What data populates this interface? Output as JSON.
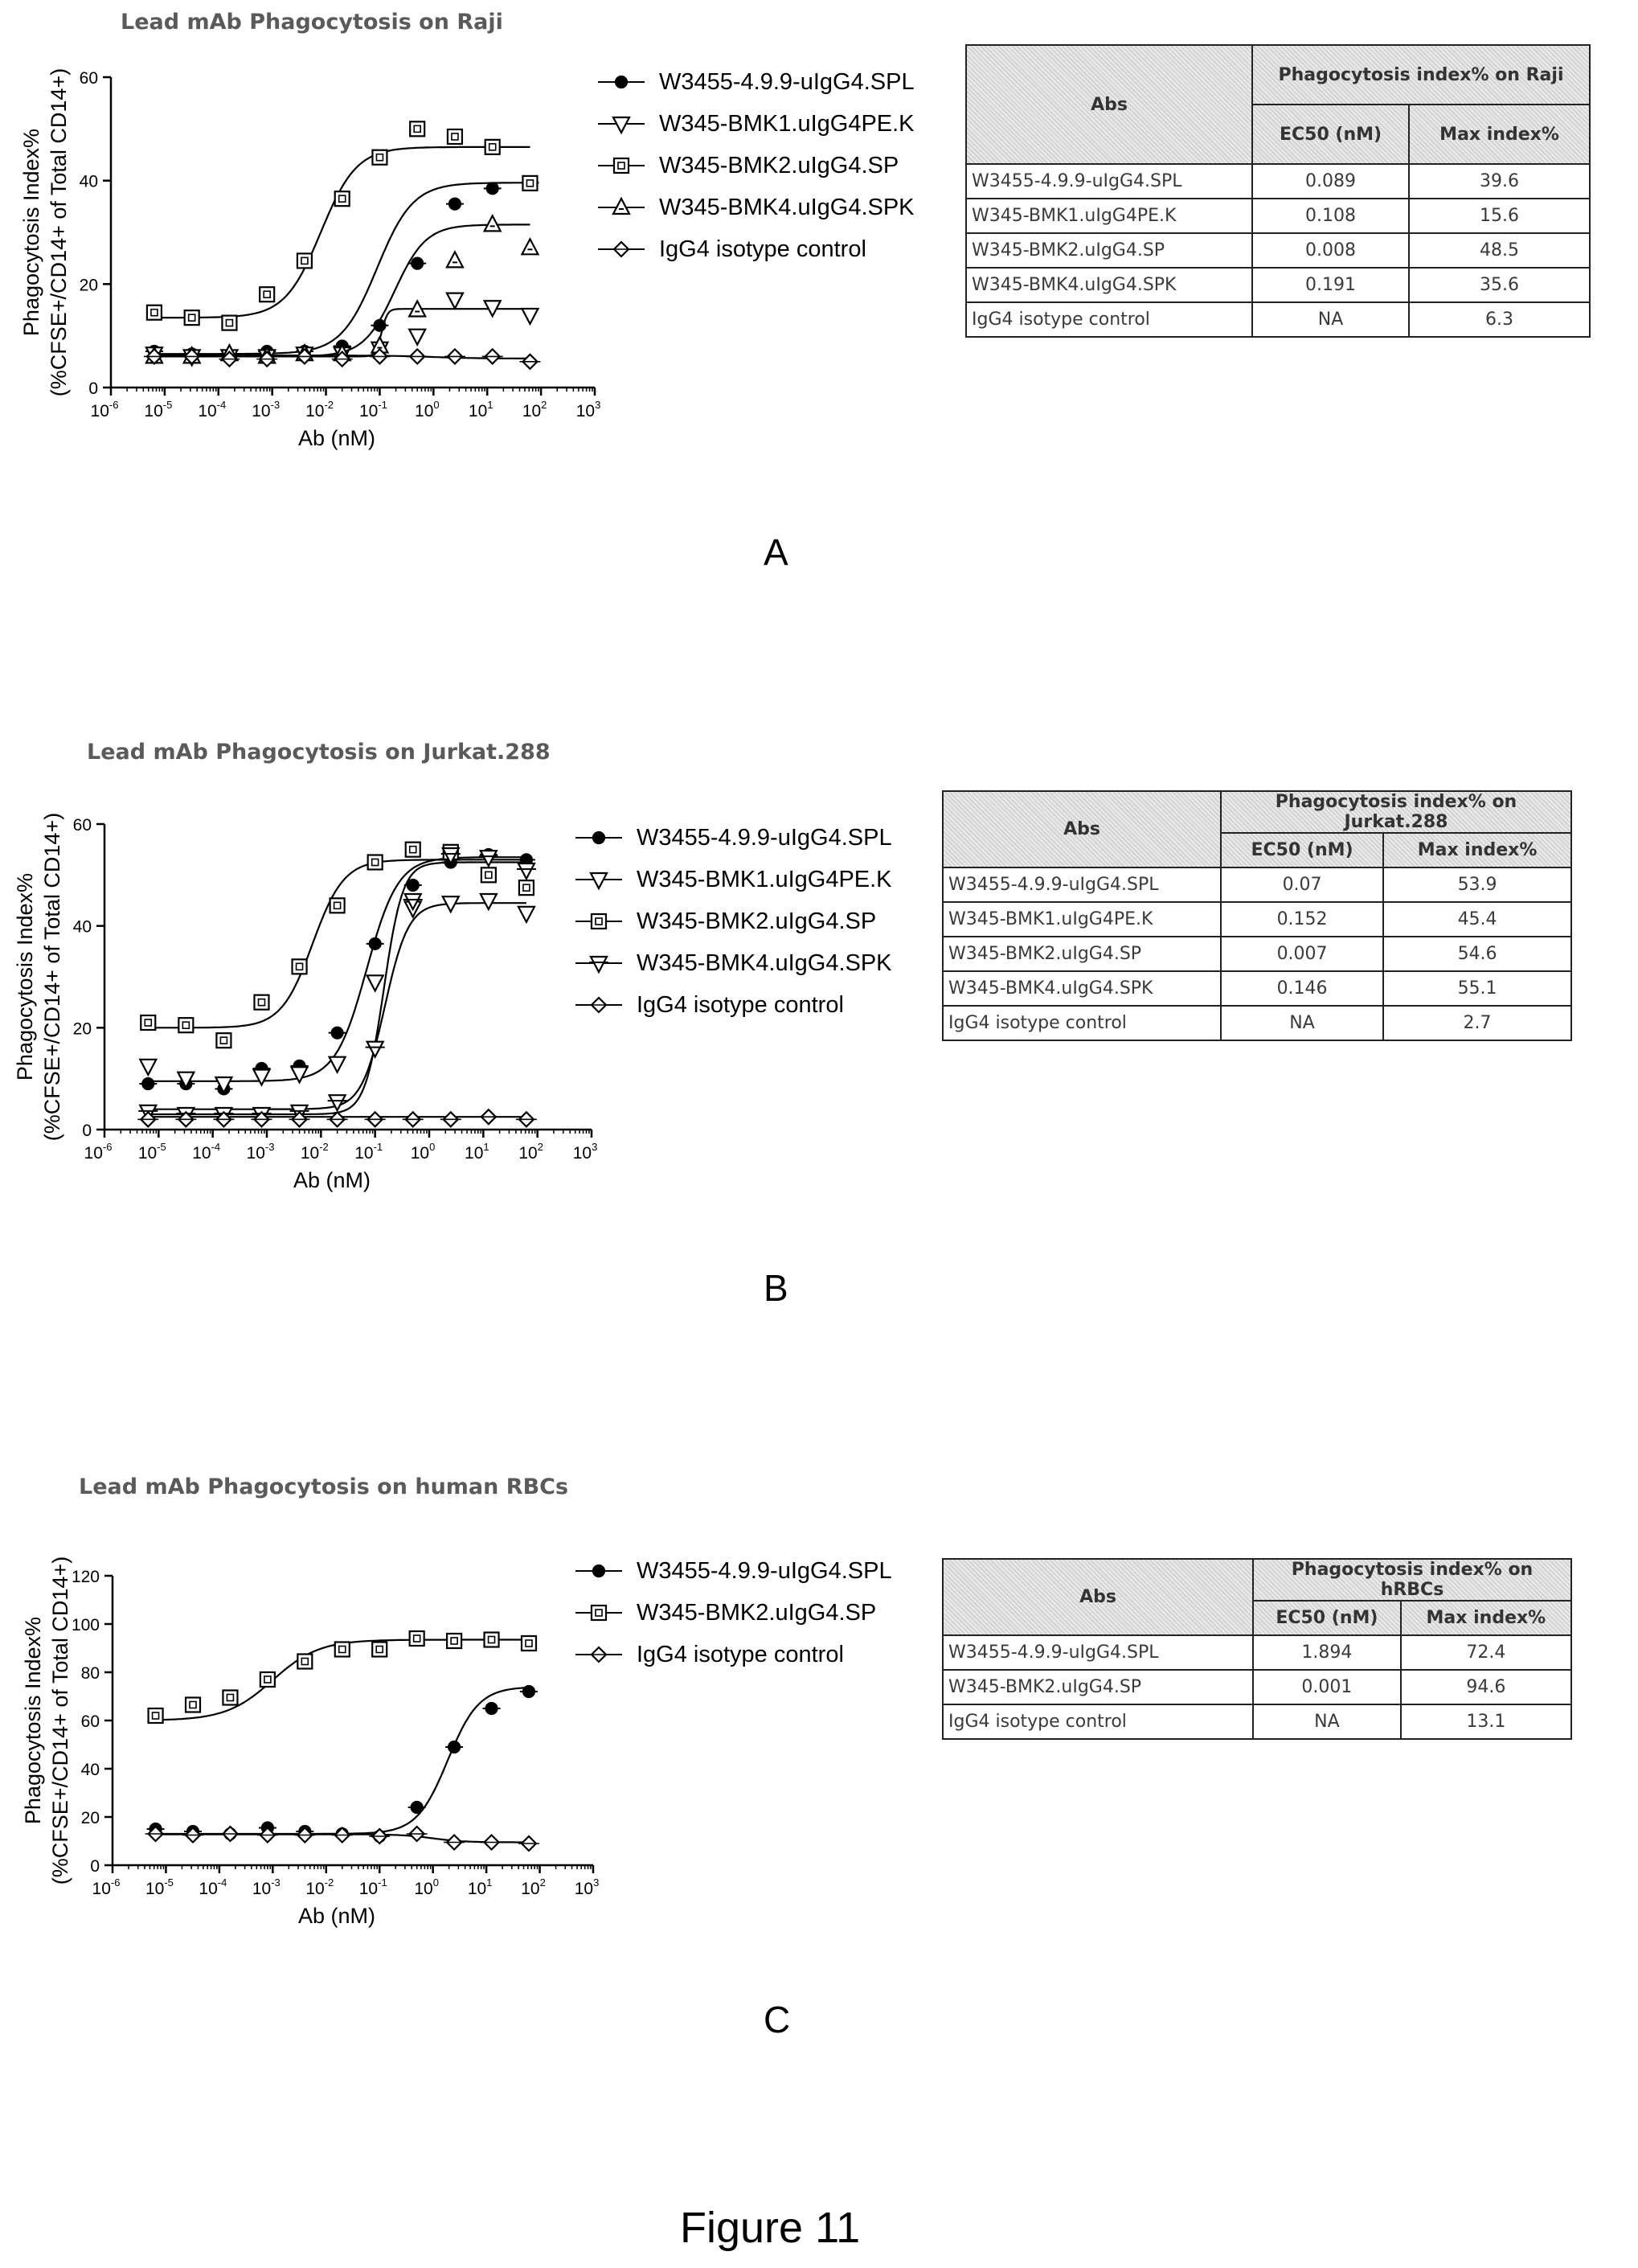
{
  "figure_label": "Figure 11",
  "panels": [
    {
      "label": "A",
      "table": {
        "abs_header": "Abs",
        "group_header": "Phagocytosis index% on Raji",
        "col1": "EC50 (nM)",
        "col2": "Max index%",
        "rows": [
          [
            "W3455-4.9.9-uIgG4.SPL",
            "0.089",
            "39.6"
          ],
          [
            "W345-BMK1.uIgG4PE.K",
            "0.108",
            "15.6"
          ],
          [
            "W345-BMK2.uIgG4.SP",
            "0.008",
            "48.5"
          ],
          [
            "W345-BMK4.uIgG4.SPK",
            "0.191",
            "35.6"
          ],
          [
            "IgG4 isotype control",
            "NA",
            "6.3"
          ]
        ]
      }
    },
    {
      "label": "B",
      "table": {
        "abs_header": "Abs",
        "group_header": "Phagocytosis index% on Jurkat.288",
        "col1": "EC50 (nM)",
        "col2": "Max index%",
        "rows": [
          [
            "W3455-4.9.9-uIgG4.SPL",
            "0.07",
            "53.9"
          ],
          [
            "W345-BMK1.uIgG4PE.K",
            "0.152",
            "45.4"
          ],
          [
            "W345-BMK2.uIgG4.SP",
            "0.007",
            "54.6"
          ],
          [
            "W345-BMK4.uIgG4.SPK",
            "0.146",
            "55.1"
          ],
          [
            "IgG4 isotype control",
            "NA",
            "2.7"
          ]
        ]
      }
    },
    {
      "label": "C",
      "table": {
        "abs_header": "Abs",
        "group_header": "Phagocytosis index% on hRBCs",
        "col1": "EC50 (nM)",
        "col2": "Max index%",
        "rows": [
          [
            "W3455-4.9.9-uIgG4.SPL",
            "1.894",
            "72.4"
          ],
          [
            "W345-BMK2.uIgG4.SP",
            "0.001",
            "94.6"
          ],
          [
            "IgG4 isotype control",
            "NA",
            "13.1"
          ]
        ]
      }
    }
  ],
  "chart_data": [
    {
      "type": "scatter",
      "title": "Lead mAb Phagocytosis on Raji",
      "xlabel": "Ab (nM)",
      "ylabel": "Phagocytosis Index%\n(%CFSE+/CD14+ of Total CD14+)",
      "xscale": "log",
      "xlim": [
        1e-06,
        1000
      ],
      "ylim": [
        0,
        60
      ],
      "yticks": [
        0,
        20,
        40,
        60
      ],
      "x_tick_exponents": [
        -6,
        -5,
        -4,
        -3,
        -2,
        -1,
        0,
        1,
        2,
        3
      ],
      "legend_position": "right",
      "series": [
        {
          "name": "W3455-4.9.9-uIgG4.SPL",
          "marker": "circle-filled",
          "fit": {
            "bottom": 6.5,
            "top": 39.6,
            "ec50": 0.089,
            "hill": 1.3
          },
          "x": [
            6.4e-06,
            3.2e-05,
            0.00016,
            0.0008,
            0.004,
            0.02,
            0.1,
            0.5,
            2.5,
            12.5,
            62.5
          ],
          "y": [
            7.0,
            6.5,
            6.0,
            7.0,
            7.0,
            8.0,
            12.0,
            24.0,
            35.5,
            38.5,
            39.6
          ]
        },
        {
          "name": "W345-BMK1.uIgG4PE.K",
          "marker": "triangle-down",
          "fit": {
            "bottom": 6.0,
            "top": 15.2,
            "ec50": 0.108,
            "hill": 8
          },
          "x": [
            6.4e-06,
            3.2e-05,
            0.00016,
            0.0008,
            0.004,
            0.02,
            0.1,
            0.5,
            2.5,
            12.5,
            62.5
          ],
          "y": [
            6.5,
            6.0,
            6.0,
            6.0,
            6.5,
            6.5,
            7.5,
            10.0,
            17.0,
            15.5,
            14.0
          ]
        },
        {
          "name": "W345-BMK2.uIgG4.SP",
          "marker": "square-open",
          "fit": {
            "bottom": 13.5,
            "top": 46.5,
            "ec50": 0.008,
            "hill": 1.3
          },
          "x": [
            6.4e-06,
            3.2e-05,
            0.00016,
            0.0008,
            0.004,
            0.02,
            0.1,
            0.5,
            2.5,
            12.5,
            62.5
          ],
          "y": [
            14.5,
            13.5,
            12.5,
            18.0,
            24.5,
            36.5,
            44.5,
            50.0,
            48.5,
            46.5,
            39.5
          ]
        },
        {
          "name": "W345-BMK4.uIgG4.SPK",
          "marker": "triangle-up",
          "fit": {
            "bottom": 6.0,
            "top": 31.5,
            "ec50": 0.191,
            "hill": 1.5
          },
          "x": [
            6.4e-06,
            3.2e-05,
            0.00016,
            0.0008,
            0.004,
            0.02,
            0.1,
            0.5,
            2.5,
            12.5,
            62.5
          ],
          "y": [
            6.0,
            6.0,
            6.5,
            6.0,
            6.5,
            6.5,
            8.0,
            15.0,
            24.5,
            31.5,
            27.0
          ]
        },
        {
          "name": "IgG4 isotype control",
          "marker": "diamond",
          "fit": {
            "bottom": 6.2,
            "top": 5.6,
            "ec50": 1,
            "hill": 1
          },
          "x": [
            6.4e-06,
            3.2e-05,
            0.00016,
            0.0008,
            0.004,
            0.02,
            0.1,
            0.5,
            2.5,
            12.5,
            62.5
          ],
          "y": [
            6.0,
            6.0,
            5.5,
            5.5,
            6.0,
            5.5,
            6.0,
            6.0,
            6.0,
            6.0,
            5.0
          ]
        }
      ]
    },
    {
      "type": "scatter",
      "title": "Lead mAb Phagocytosis on Jurkat.288",
      "xlabel": "Ab (nM)",
      "ylabel": "Phagocytosis Index%\n(%CFSE+/CD14+ of Total CD14+)",
      "xscale": "log",
      "xlim": [
        1e-06,
        1000
      ],
      "ylim": [
        0,
        60
      ],
      "yticks": [
        0,
        20,
        40,
        60
      ],
      "x_tick_exponents": [
        -6,
        -5,
        -4,
        -3,
        -2,
        -1,
        0,
        1,
        2,
        3
      ],
      "legend_position": "right",
      "series": [
        {
          "name": "W3455-4.9.9-uIgG4.SPL",
          "marker": "circle-filled",
          "fit": {
            "bottom": 9.5,
            "top": 53.5,
            "ec50": 0.07,
            "hill": 1.5
          },
          "x": [
            6.4e-06,
            3.2e-05,
            0.00016,
            0.0008,
            0.004,
            0.02,
            0.1,
            0.5,
            2.5,
            12.5,
            62.5
          ],
          "y": [
            9.0,
            9.0,
            8.0,
            12.0,
            12.5,
            19.0,
            36.5,
            48.0,
            52.5,
            54.0,
            53.0
          ]
        },
        {
          "name": "W345-BMK1.uIgG4PE.K",
          "marker": "triangle-down",
          "fit": {
            "bottom": 4.0,
            "top": 44.5,
            "ec50": 0.152,
            "hill": 2
          },
          "x": [
            6.4e-06,
            3.2e-05,
            0.00016,
            0.0008,
            0.004,
            0.02,
            0.1,
            0.5,
            2.5,
            12.5,
            62.5
          ],
          "y": [
            12.5,
            10.0,
            9.0,
            10.5,
            11.0,
            13.0,
            29.0,
            43.5,
            44.5,
            45.0,
            42.5
          ]
        },
        {
          "name": "W345-BMK2.uIgG4.SP",
          "marker": "square-open",
          "fit": {
            "bottom": 20.0,
            "top": 53.0,
            "ec50": 0.007,
            "hill": 1.5
          },
          "x": [
            6.4e-06,
            3.2e-05,
            0.00016,
            0.0008,
            0.004,
            0.02,
            0.1,
            0.5,
            2.5,
            12.5,
            62.5
          ],
          "y": [
            21.0,
            20.5,
            17.5,
            25.0,
            32.0,
            44.0,
            52.5,
            55.0,
            54.5,
            50.0,
            47.5
          ]
        },
        {
          "name": "W345-BMK4.uIgG4.SPK",
          "marker": "triangle-down-x",
          "fit": {
            "bottom": 3.0,
            "top": 52.5,
            "ec50": 0.146,
            "hill": 2.5
          },
          "x": [
            6.4e-06,
            3.2e-05,
            0.00016,
            0.0008,
            0.004,
            0.02,
            0.1,
            0.5,
            2.5,
            12.5,
            62.5
          ],
          "y": [
            3.5,
            3.0,
            3.0,
            3.0,
            3.5,
            5.5,
            16.0,
            45.0,
            54.0,
            53.5,
            51.0
          ]
        },
        {
          "name": "IgG4 isotype control",
          "marker": "diamond",
          "fit": {
            "bottom": 2.5,
            "top": 2.5,
            "ec50": 1,
            "hill": 1
          },
          "x": [
            6.4e-06,
            3.2e-05,
            0.00016,
            0.0008,
            0.004,
            0.02,
            0.1,
            0.5,
            2.5,
            12.5,
            62.5
          ],
          "y": [
            2.0,
            2.0,
            2.0,
            2.0,
            2.0,
            2.0,
            2.0,
            2.0,
            2.0,
            2.5,
            2.0
          ]
        }
      ]
    },
    {
      "type": "scatter",
      "title": "Lead mAb Phagocytosis on human RBCs",
      "xlabel": "Ab (nM)",
      "ylabel": "Phagocytosis Index%\n(%CFSE+/CD14+ of Total CD14+)",
      "xscale": "log",
      "xlim": [
        1e-06,
        1000
      ],
      "ylim": [
        0,
        120
      ],
      "yticks": [
        0,
        20,
        40,
        60,
        80,
        100,
        120
      ],
      "x_tick_exponents": [
        -6,
        -5,
        -4,
        -3,
        -2,
        -1,
        0,
        1,
        2,
        3
      ],
      "legend_position": "right",
      "series": [
        {
          "name": "W3455-4.9.9-uIgG4.SPL",
          "marker": "circle-filled",
          "fit": {
            "bottom": 13.0,
            "top": 74.0,
            "ec50": 1.894,
            "hill": 1.5
          },
          "x": [
            6.4e-06,
            3.2e-05,
            0.00016,
            0.0008,
            0.004,
            0.02,
            0.1,
            0.5,
            2.5,
            12.5,
            62.5
          ],
          "y": [
            15.0,
            14.0,
            13.0,
            15.5,
            14.0,
            13.0,
            12.0,
            24.0,
            49.0,
            65.0,
            72.0
          ]
        },
        {
          "name": "W345-BMK2.uIgG4.SP",
          "marker": "square-open",
          "fit": {
            "bottom": 60.0,
            "top": 93.5,
            "ec50": 0.001,
            "hill": 1.0
          },
          "x": [
            6.4e-06,
            3.2e-05,
            0.00016,
            0.0008,
            0.004,
            0.02,
            0.1,
            0.5,
            2.5,
            12.5,
            62.5
          ],
          "y": [
            62.0,
            66.5,
            69.5,
            77.0,
            84.5,
            89.5,
            89.5,
            94.0,
            93.0,
            93.5,
            92.0
          ]
        },
        {
          "name": "IgG4 isotype control",
          "marker": "diamond",
          "fit": {
            "bottom": 12.8,
            "top": 9.5,
            "ec50": 1,
            "hill": 1.5
          },
          "x": [
            6.4e-06,
            3.2e-05,
            0.00016,
            0.0008,
            0.004,
            0.02,
            0.1,
            0.5,
            2.5,
            12.5,
            62.5
          ],
          "y": [
            13.0,
            12.5,
            13.0,
            12.5,
            12.5,
            12.5,
            12.0,
            13.0,
            9.5,
            9.5,
            9.0
          ]
        }
      ]
    }
  ]
}
